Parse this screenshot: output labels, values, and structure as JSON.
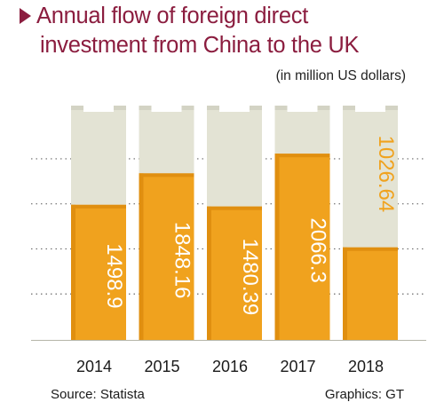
{
  "chart_data": {
    "type": "bar",
    "title_line_1": "Annual flow of foreign direct",
    "title_line_2": "investment from China to the UK",
    "unit_note": "(in million US dollars)",
    "categories": [
      "2014",
      "2015",
      "2016",
      "2017",
      "2018"
    ],
    "values": [
      1498.9,
      1848.16,
      1480.39,
      2066.3,
      1026.64
    ],
    "value_labels": [
      "1498.9",
      "1848.16",
      "1480.39",
      "2066.3",
      "1026.64"
    ],
    "ylim": [
      0,
      2600
    ],
    "grid": "dotted",
    "source": "Source: Statista",
    "credit": "Graphics: GT",
    "colors": {
      "title": "#8b1d3f",
      "bar": "#f0a21e",
      "bar_edge": "#e08f10",
      "column_background": "#e3e3d4",
      "value_label_inside": "#ffffff",
      "value_label_outside": "#f0a21e"
    }
  }
}
